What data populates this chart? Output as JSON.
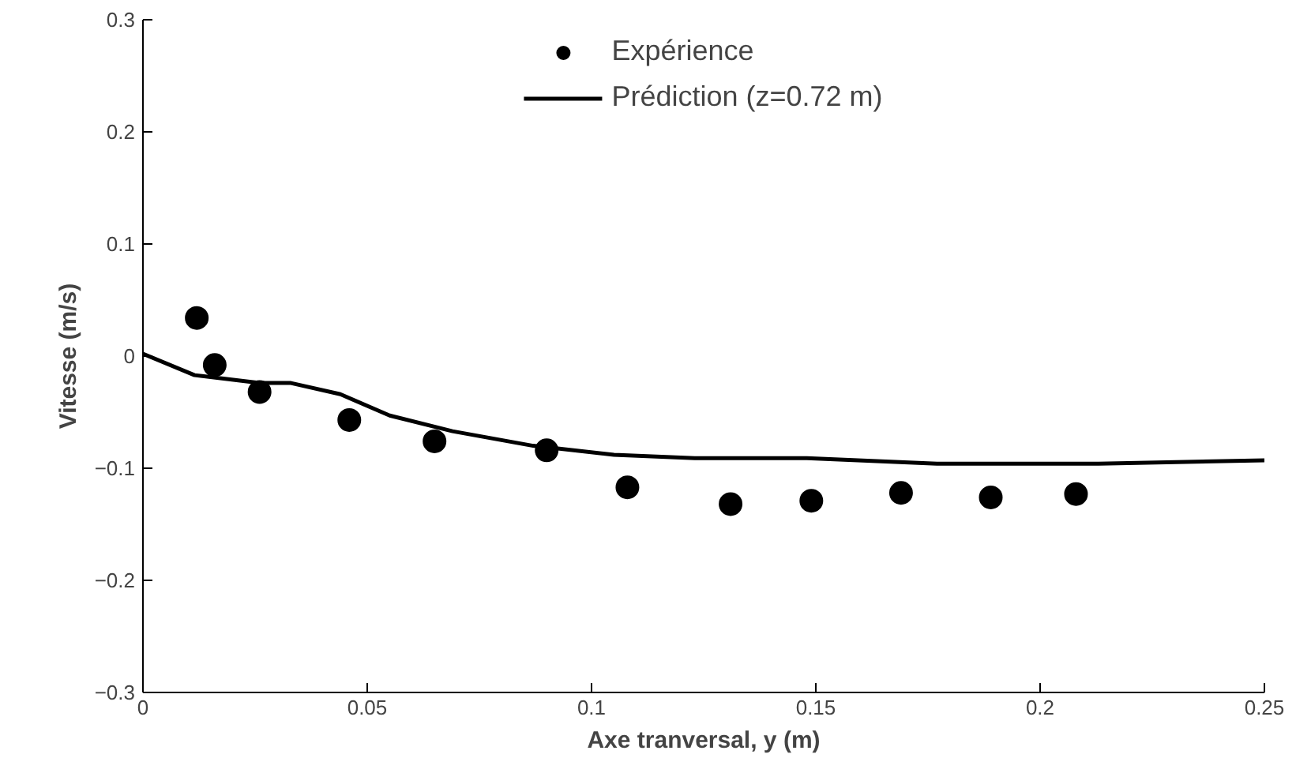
{
  "chart_data": {
    "type": "scatter",
    "xlabel": "Axe tranversal, y (m)",
    "ylabel": "Vitesse (m/s)",
    "xlim": [
      0,
      0.25
    ],
    "ylim": [
      -0.3,
      0.3
    ],
    "xticks": [
      0,
      0.05,
      0.1,
      0.15,
      0.2,
      0.25
    ],
    "yticks": [
      -0.3,
      -0.2,
      -0.1,
      0,
      0.1,
      0.2,
      0.3
    ],
    "grid": false,
    "legend": "top",
    "series": [
      {
        "name": "Expérience",
        "marker": "circle",
        "color": "#000000",
        "x": [
          0.012,
          0.016,
          0.026,
          0.046,
          0.065,
          0.09,
          0.108,
          0.131,
          0.149,
          0.169,
          0.189,
          0.208
        ],
        "values": [
          0.034,
          -0.008,
          -0.032,
          -0.057,
          -0.076,
          -0.084,
          -0.117,
          -0.132,
          -0.129,
          -0.122,
          -0.126,
          -0.123
        ]
      },
      {
        "name": "Prédiction (z=0.72 m)",
        "type": "line",
        "line_style": "solid",
        "color": "#000000",
        "x": [
          0,
          0.0115,
          0.026,
          0.033,
          0.044,
          0.055,
          0.069,
          0.087,
          0.105,
          0.123,
          0.148,
          0.177,
          0.213,
          0.25
        ],
        "values": [
          0.002,
          -0.017,
          -0.024,
          -0.024,
          -0.034,
          -0.053,
          -0.067,
          -0.08,
          -0.088,
          -0.091,
          -0.091,
          -0.096,
          -0.096,
          -0.093
        ]
      }
    ]
  }
}
